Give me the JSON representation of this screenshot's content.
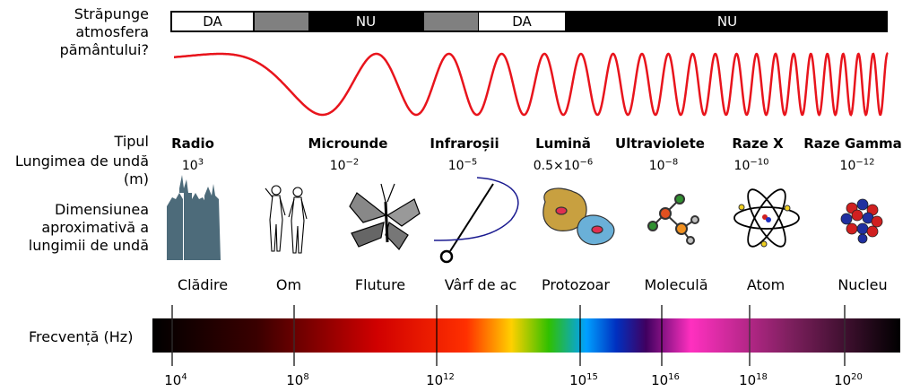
{
  "left_labels": {
    "atmosphere_q": [
      "Străpunge",
      "atmosfera",
      "pământului?"
    ],
    "type": "Tipul",
    "wavelength": [
      "Lungimea de undă",
      "(m)"
    ],
    "size": [
      "Dimensiunea",
      "aproximativă a",
      "lungimii de undă"
    ],
    "frequency": "Frecvență (Hz)"
  },
  "atmosphere_bar": [
    {
      "label": "DA",
      "state": "yes"
    },
    {
      "label": "",
      "state": "partial"
    },
    {
      "label": "NU",
      "state": "no"
    },
    {
      "label": "",
      "state": "partial"
    },
    {
      "label": "DA",
      "state": "yes"
    },
    {
      "label": "NU",
      "state": "no"
    }
  ],
  "bands": [
    {
      "type": "Radio",
      "wavelength_base": "10",
      "wavelength_exp": "3",
      "object": "Clădire",
      "icon": "buildings-icon"
    },
    {
      "type": "Microunde",
      "wavelength_base": "10",
      "wavelength_exp": "−2",
      "object": "Om",
      "icon": "humans-icon"
    },
    {
      "type": "Infraroșii",
      "wavelength_base": "10",
      "wavelength_exp": "−5",
      "object": "Fluture",
      "icon": "butterfly-icon"
    },
    {
      "type": "Lumină",
      "wavelength_base": "0.5×10",
      "wavelength_exp": "−6",
      "object": "Vârf de ac",
      "icon": "needle-icon"
    },
    {
      "type": "Ultraviolete",
      "wavelength_base": "10",
      "wavelength_exp": "−8",
      "object": "Protozoar",
      "icon": "protozoa-icon"
    },
    {
      "type": "Raze X",
      "wavelength_base": "10",
      "wavelength_exp": "−10",
      "object": "Moleculă",
      "icon": "molecule-icon"
    },
    {
      "type": "Raze Gamma",
      "wavelength_base": "10",
      "wavelength_exp": "−12",
      "object": "Atom",
      "icon": "atom-icon"
    }
  ],
  "extra_object": {
    "object": "Nucleu",
    "icon": "nucleus-icon"
  },
  "frequency_ticks": [
    {
      "base": "10",
      "exp": "4"
    },
    {
      "base": "10",
      "exp": "8"
    },
    {
      "base": "10",
      "exp": "12"
    },
    {
      "base": "10",
      "exp": "15"
    },
    {
      "base": "10",
      "exp": "16"
    },
    {
      "base": "10",
      "exp": "18"
    },
    {
      "base": "10",
      "exp": "20"
    }
  ],
  "colors": {
    "wave": "#e8141c",
    "bar": "#000000",
    "partial": "#808080",
    "building": "#4d6b7a"
  }
}
